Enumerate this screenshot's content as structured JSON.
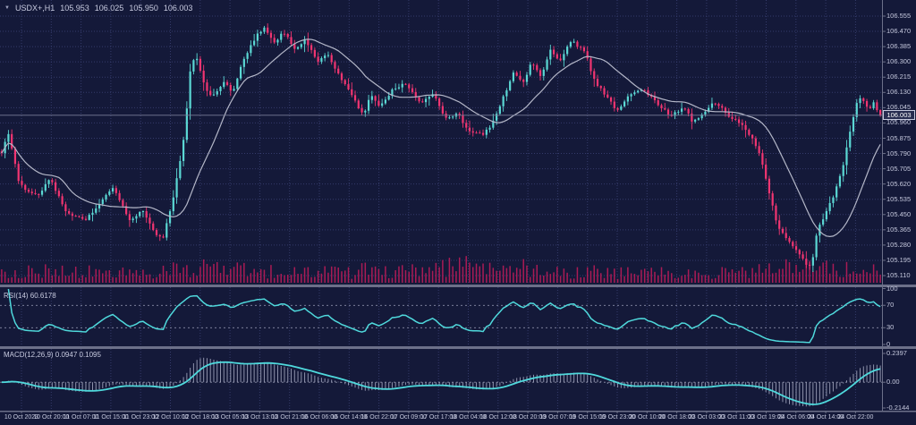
{
  "header": {
    "dropdown_icon": "▼",
    "symbol_period": "USDX+,H1",
    "open": "105.953",
    "high": "106.025",
    "low": "105.950",
    "close": "106.003"
  },
  "colors": {
    "background": "#141939",
    "grid": "#353b6b",
    "separator": "#6c7089",
    "bull": "#5bd8d4",
    "bear": "#f13571",
    "ma_line": "#b4b7c8",
    "volume": "#aa1b55",
    "rsi_line": "#4fd9dc",
    "macd_histogram": "#b7bbd2",
    "macd_signal": "#4fd9dc",
    "level_line": "#8a8ea8",
    "price_line": "#777c98",
    "axis_text": "#c6c9de",
    "price_tag_bg": "#272c50",
    "price_tag_border": "#c6c9de"
  },
  "chart_data": {
    "type": "candlestick",
    "symbol": "USDX+",
    "timeframe": "H1",
    "title": "USDX+,H1 105.953 106.025 105.950 106.003",
    "last_ohlc": {
      "open": 105.953,
      "high": 106.025,
      "low": 105.95,
      "close": 106.003
    },
    "current_price": 106.003,
    "y_range": [
      105.11,
      106.555
    ],
    "price_axis_ticks": [
      "106.555",
      "106.470",
      "106.385",
      "106.300",
      "106.215",
      "106.130",
      "106.045",
      "105.960",
      "105.875",
      "105.790",
      "105.705",
      "105.620",
      "105.535",
      "105.450",
      "105.365",
      "105.280",
      "105.195",
      "105.110"
    ],
    "time_axis_ticks": [
      "10 Oct 2023",
      "10 Oct 20:00",
      "11 Oct 07:00",
      "11 Oct 15:00",
      "11 Oct 23:00",
      "12 Oct 10:00",
      "12 Oct 18:00",
      "13 Oct 05:00",
      "13 Oct 13:00",
      "13 Oct 21:00",
      "16 Oct 06:00",
      "16 Oct 14:00",
      "16 Oct 22:00",
      "17 Oct 09:00",
      "17 Oct 17:00",
      "18 Oct 04:00",
      "18 Oct 12:00",
      "18 Oct 20:00",
      "19 Oct 07:00",
      "19 Oct 15:00",
      "19 Oct 23:00",
      "20 Oct 10:00",
      "20 Oct 18:00",
      "23 Oct 03:00",
      "23 Oct 11:00",
      "23 Oct 19:00",
      "24 Oct 06:00",
      "24 Oct 14:00",
      "24 Oct 22:00"
    ],
    "num_candles": 262,
    "close_path": [
      [
        0.0,
        105.8
      ],
      [
        0.008,
        105.9
      ],
      [
        0.02,
        105.62
      ],
      [
        0.04,
        105.55
      ],
      [
        0.055,
        105.65
      ],
      [
        0.075,
        105.45
      ],
      [
        0.095,
        105.42
      ],
      [
        0.11,
        105.5
      ],
      [
        0.127,
        105.6
      ],
      [
        0.145,
        105.42
      ],
      [
        0.16,
        105.47
      ],
      [
        0.172,
        105.36
      ],
      [
        0.183,
        105.31
      ],
      [
        0.196,
        105.55
      ],
      [
        0.208,
        105.9
      ],
      [
        0.215,
        106.27
      ],
      [
        0.221,
        106.33
      ],
      [
        0.232,
        106.15
      ],
      [
        0.24,
        106.1
      ],
      [
        0.254,
        106.2
      ],
      [
        0.262,
        106.12
      ],
      [
        0.274,
        106.3
      ],
      [
        0.29,
        106.45
      ],
      [
        0.299,
        106.49
      ],
      [
        0.31,
        106.4
      ],
      [
        0.32,
        106.47
      ],
      [
        0.335,
        106.37
      ],
      [
        0.345,
        106.42
      ],
      [
        0.36,
        106.3
      ],
      [
        0.37,
        106.35
      ],
      [
        0.385,
        106.22
      ],
      [
        0.401,
        106.1
      ],
      [
        0.411,
        106.0
      ],
      [
        0.421,
        106.12
      ],
      [
        0.431,
        106.05
      ],
      [
        0.446,
        106.15
      ],
      [
        0.461,
        106.18
      ],
      [
        0.477,
        106.07
      ],
      [
        0.492,
        106.12
      ],
      [
        0.507,
        105.97
      ],
      [
        0.517,
        106.02
      ],
      [
        0.532,
        105.92
      ],
      [
        0.548,
        105.9
      ],
      [
        0.558,
        105.95
      ],
      [
        0.568,
        106.07
      ],
      [
        0.583,
        106.25
      ],
      [
        0.593,
        106.17
      ],
      [
        0.603,
        106.3
      ],
      [
        0.614,
        106.22
      ],
      [
        0.624,
        106.37
      ],
      [
        0.634,
        106.3
      ],
      [
        0.649,
        106.42
      ],
      [
        0.664,
        106.35
      ],
      [
        0.674,
        106.2
      ],
      [
        0.69,
        106.1
      ],
      [
        0.7,
        106.02
      ],
      [
        0.715,
        106.12
      ],
      [
        0.73,
        106.15
      ],
      [
        0.745,
        106.07
      ],
      [
        0.761,
        106.0
      ],
      [
        0.776,
        106.05
      ],
      [
        0.786,
        105.97
      ],
      [
        0.801,
        106.02
      ],
      [
        0.811,
        106.08
      ],
      [
        0.827,
        106.0
      ],
      [
        0.842,
        105.95
      ],
      [
        0.857,
        105.85
      ],
      [
        0.867,
        105.72
      ],
      [
        0.872,
        105.6
      ],
      [
        0.882,
        105.4
      ],
      [
        0.892,
        105.32
      ],
      [
        0.902,
        105.27
      ],
      [
        0.912,
        105.2
      ],
      [
        0.921,
        105.15
      ],
      [
        0.928,
        105.35
      ],
      [
        0.938,
        105.47
      ],
      [
        0.948,
        105.57
      ],
      [
        0.958,
        105.72
      ],
      [
        0.965,
        105.9
      ],
      [
        0.972,
        106.06
      ],
      [
        0.979,
        106.1
      ],
      [
        0.986,
        106.04
      ],
      [
        0.993,
        106.07
      ],
      [
        1.0,
        106.003
      ]
    ],
    "volume_profile": [
      [
        0,
        0.5
      ],
      [
        0.05,
        0.65
      ],
      [
        0.1,
        0.45
      ],
      [
        0.18,
        0.5
      ],
      [
        0.22,
        0.8
      ],
      [
        0.27,
        0.65
      ],
      [
        0.33,
        0.55
      ],
      [
        0.4,
        0.5
      ],
      [
        0.46,
        0.55
      ],
      [
        0.5,
        0.7
      ],
      [
        0.53,
        1.0
      ],
      [
        0.57,
        0.65
      ],
      [
        0.62,
        0.6
      ],
      [
        0.68,
        0.55
      ],
      [
        0.74,
        0.5
      ],
      [
        0.8,
        0.45
      ],
      [
        0.86,
        0.6
      ],
      [
        0.91,
        0.8
      ],
      [
        0.95,
        0.75
      ],
      [
        1.0,
        0.55
      ]
    ],
    "indicators": {
      "ma": {
        "type": "moving-average",
        "period": 18
      },
      "rsi": {
        "label": "RSI(14) 60.6178",
        "period": 14,
        "last_value": 60.6178,
        "levels": [
          70,
          30
        ],
        "axis_ticks": [
          "100",
          "70",
          "30",
          "0"
        ],
        "axis_values": [
          100,
          70,
          30,
          0
        ],
        "range": [
          0,
          100
        ]
      },
      "macd": {
        "label": "MACD(12,26,9) 0.0947 0.1095",
        "fast": 12,
        "slow": 26,
        "signal": 9,
        "last_macd": 0.0947,
        "last_signal": 0.1095,
        "axis_ticks": [
          "0.2397",
          "0.00",
          "-0.2144"
        ],
        "axis_values": [
          0.2397,
          0,
          -0.2144
        ],
        "range": [
          -0.2144,
          0.2397
        ]
      }
    }
  }
}
